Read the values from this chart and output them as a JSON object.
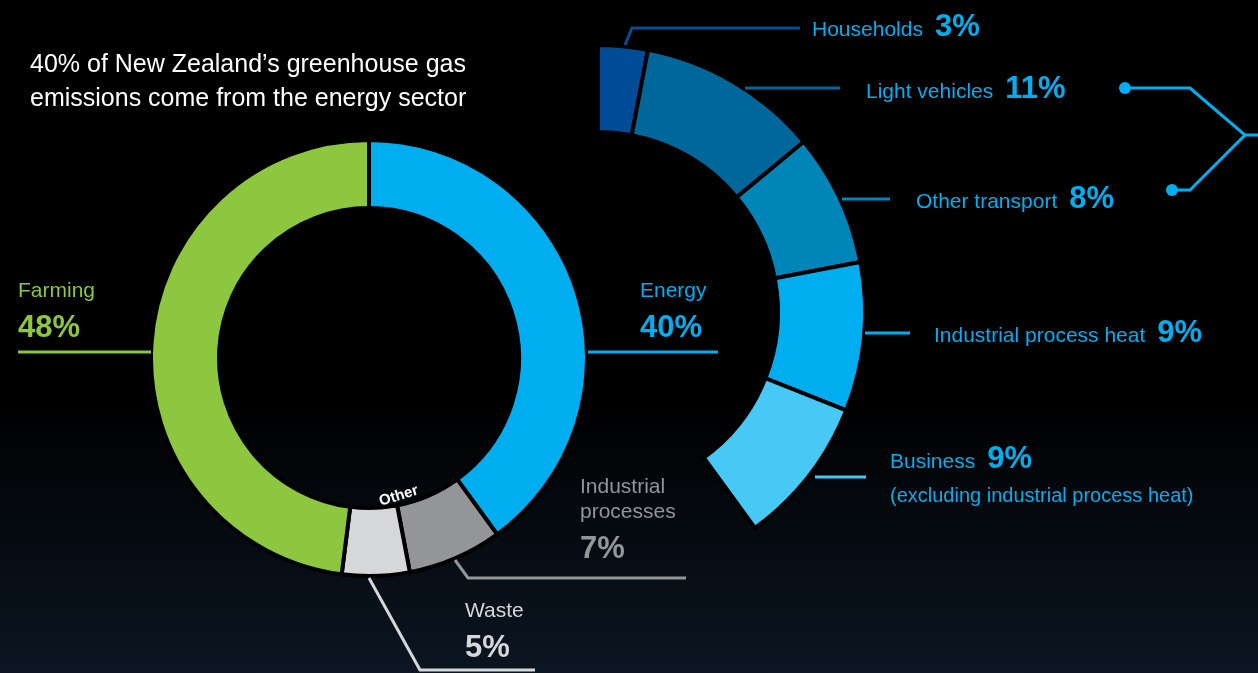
{
  "chart_data": [
    {
      "type": "donut",
      "title": "40% of New Zealand’s greenhouse gas emissions come from the energy sector",
      "categories": [
        "Energy",
        "Industrial processes",
        "Waste",
        "Farming"
      ],
      "values": [
        40,
        7,
        5,
        48
      ],
      "colors": [
        "#00aeef",
        "#939598",
        "#d6d7d9",
        "#8dc63f"
      ],
      "value_labels": [
        "40%",
        "7%",
        "5%",
        "48%"
      ],
      "annotations": [
        "Other"
      ]
    },
    {
      "type": "donut",
      "legend": "right",
      "categories": [
        "Households",
        "Light vehicles",
        "Other transport",
        "Industrial process heat",
        "Business"
      ],
      "values": [
        3,
        11,
        8,
        9,
        9
      ],
      "colors": [
        "#004c97",
        "#00679a",
        "#0085b9",
        "#00aeef",
        "#47c8f5"
      ],
      "value_labels": [
        "3%",
        "11%",
        "8%",
        "9%",
        "9%"
      ],
      "annotations": [
        "(excluding industrial process heat)"
      ]
    }
  ]
}
